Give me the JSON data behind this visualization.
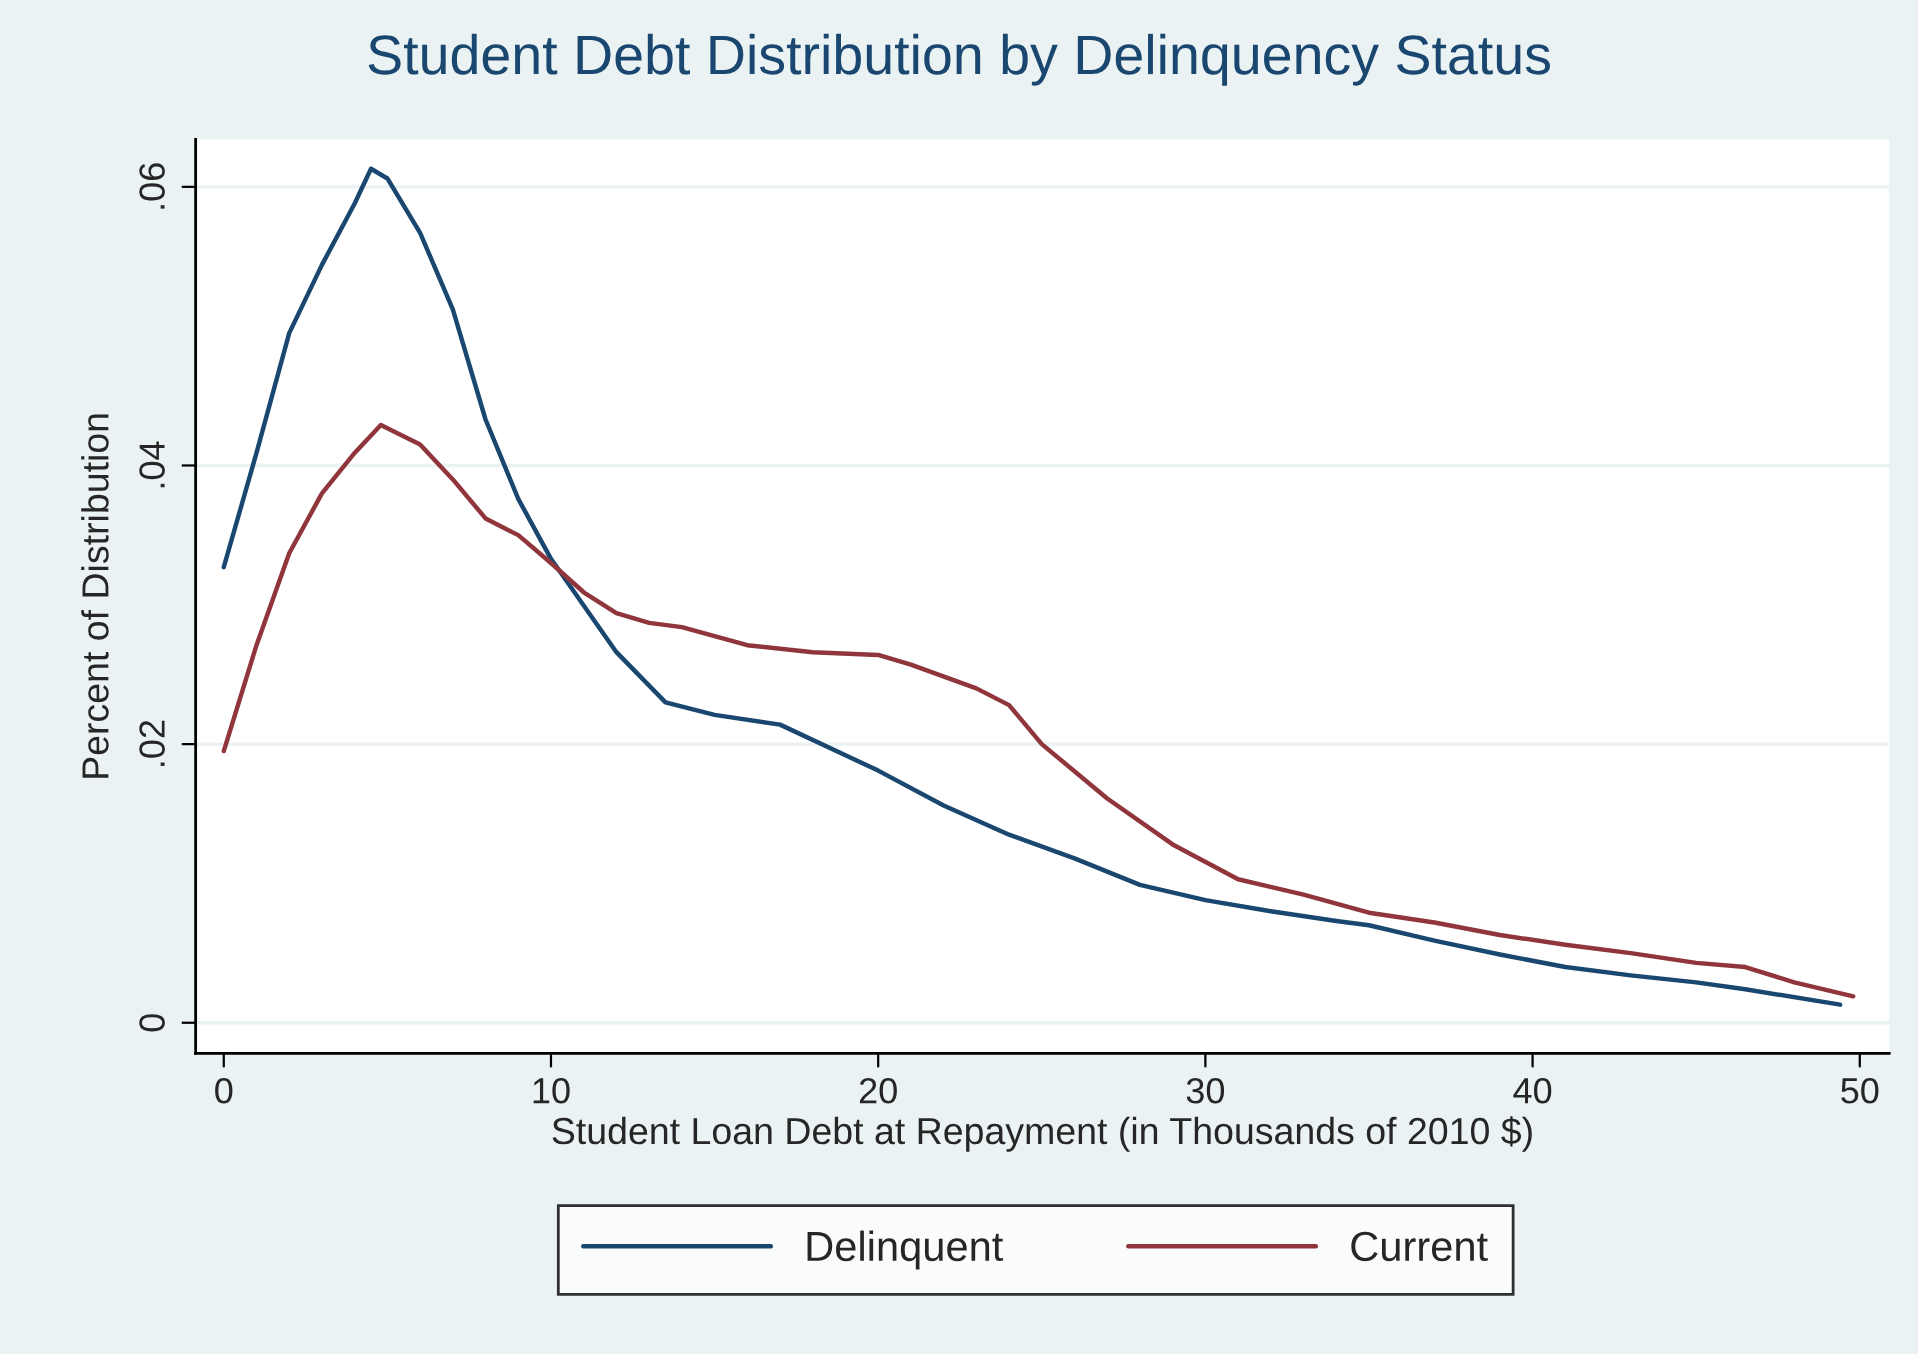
{
  "chart_data": {
    "type": "line",
    "title": "Student Debt Distribution by Delinquency Status",
    "xlabel": "Student Loan Debt at Repayment (in Thousands of 2010 $)",
    "ylabel": "Percent of Distribution",
    "xlim": [
      -0.86,
      50.9
    ],
    "ylim": [
      -0.0022,
      0.0634
    ],
    "xticks": [
      0,
      10,
      20,
      30,
      40,
      50
    ],
    "yticks": [
      {
        "value": 0,
        "label": "0"
      },
      {
        "value": 0.02,
        "label": ".02"
      },
      {
        "value": 0.04,
        "label": ".04"
      },
      {
        "value": 0.06,
        "label": ".06"
      }
    ],
    "grid": "y",
    "legend": "bottom",
    "marker": "none",
    "line_style": "solid",
    "series": [
      {
        "name": "Delinquent",
        "color": "#1a476f",
        "x": [
          0,
          1,
          2,
          3,
          4,
          4.5,
          5,
          6,
          7,
          8,
          9,
          10,
          12,
          13.5,
          15,
          17,
          19,
          20,
          22,
          24,
          26,
          28,
          30,
          32,
          34,
          35,
          37,
          39,
          41,
          43,
          45,
          46.5,
          49.4
        ],
        "values": [
          0.0327,
          0.0409,
          0.0495,
          0.0544,
          0.0588,
          0.0613,
          0.0606,
          0.0567,
          0.0512,
          0.0433,
          0.0376,
          0.0333,
          0.0266,
          0.023,
          0.0221,
          0.0214,
          0.0192,
          0.0181,
          0.0156,
          0.0135,
          0.0118,
          0.0099,
          0.0088,
          0.008,
          0.0073,
          0.007,
          0.0059,
          0.0049,
          0.004,
          0.0034,
          0.0029,
          0.0024,
          0.0013
        ]
      },
      {
        "name": "Current",
        "color": "#90353b",
        "x": [
          0,
          1,
          2,
          3,
          4,
          4.8,
          6,
          7,
          8,
          9,
          10,
          11,
          12,
          13,
          14,
          16,
          18,
          20,
          21,
          23,
          24,
          25,
          27,
          29,
          31,
          33,
          35,
          37,
          39,
          41,
          43,
          45,
          46.5,
          48,
          49.8
        ],
        "values": [
          0.0195,
          0.0271,
          0.0337,
          0.038,
          0.0409,
          0.0429,
          0.0415,
          0.039,
          0.0362,
          0.035,
          0.033,
          0.0309,
          0.0294,
          0.0287,
          0.0284,
          0.0271,
          0.0266,
          0.0264,
          0.0257,
          0.024,
          0.0228,
          0.02,
          0.0161,
          0.0128,
          0.0103,
          0.0092,
          0.0079,
          0.0072,
          0.0063,
          0.0056,
          0.005,
          0.0043,
          0.004,
          0.0029,
          0.0019
        ]
      }
    ]
  }
}
